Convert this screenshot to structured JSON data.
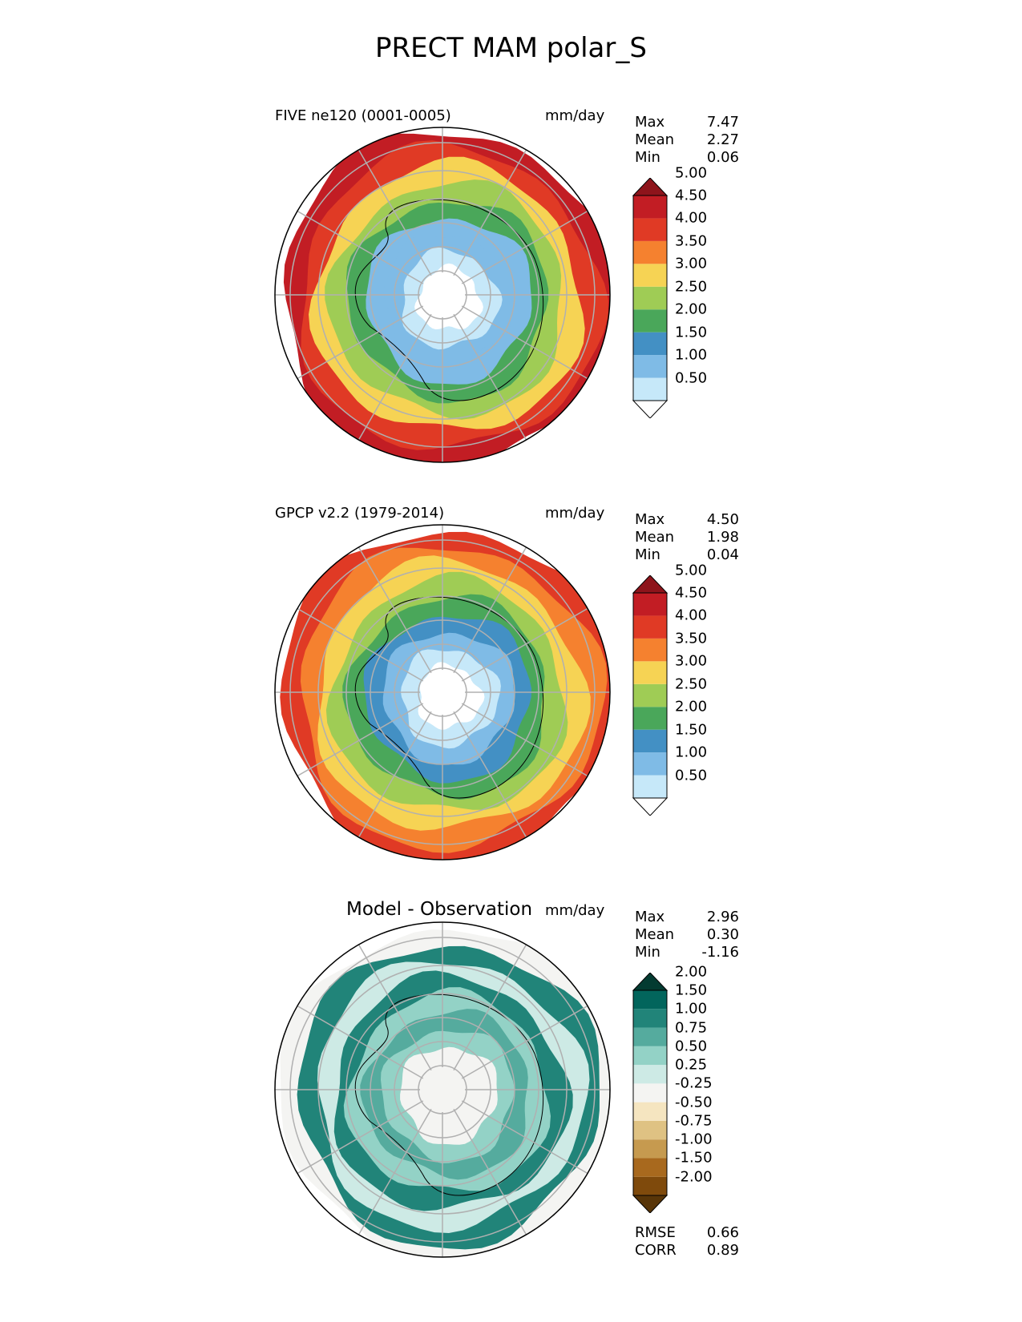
{
  "figure": {
    "title": "PRECT MAM polar_S",
    "units": "mm/day"
  },
  "chart_data": [
    {
      "type": "heatmap",
      "projection": "south polar stereographic",
      "title": "FIVE ne120 (0001-0005)",
      "units": "mm/day",
      "stats": {
        "max_label": "Max",
        "max": "7.47",
        "mean_label": "Mean",
        "mean": "2.27",
        "min_label": "Min",
        "min": "0.06"
      },
      "colorbar": {
        "levels": [
          "0.50",
          "1.00",
          "1.50",
          "2.00",
          "2.50",
          "3.00",
          "3.50",
          "4.00",
          "4.50",
          "5.00"
        ],
        "colors": [
          "#ffffff",
          "#c6e8f9",
          "#7fbbe6",
          "#4390c4",
          "#4aa75a",
          "#9fcc55",
          "#f6d354",
          "#f5812f",
          "#e03a25",
          "#c21d24",
          "#8e141b"
        ],
        "extend": "both"
      },
      "rings_mm_day": [
        0.3,
        0.6,
        1.0,
        1.4,
        2.2,
        2.7,
        3.3,
        4.0,
        4.8
      ]
    },
    {
      "type": "heatmap",
      "projection": "south polar stereographic",
      "title": "GPCP v2.2 (1979-2014)",
      "units": "mm/day",
      "stats": {
        "max_label": "Max",
        "max": "4.50",
        "mean_label": "Mean",
        "mean": "1.98",
        "min_label": "Min",
        "min": "0.04"
      },
      "colorbar": {
        "levels": [
          "0.50",
          "1.00",
          "1.50",
          "2.00",
          "2.50",
          "3.00",
          "3.50",
          "4.00",
          "4.50",
          "5.00"
        ],
        "colors": [
          "#ffffff",
          "#c6e8f9",
          "#7fbbe6",
          "#4390c4",
          "#4aa75a",
          "#9fcc55",
          "#f6d354",
          "#f5812f",
          "#e03a25",
          "#c21d24",
          "#8e141b"
        ],
        "extend": "both"
      },
      "rings_mm_day": [
        0.3,
        0.7,
        1.1,
        1.6,
        2.2,
        2.7,
        3.2,
        3.8,
        4.2
      ]
    },
    {
      "type": "heatmap",
      "projection": "south polar stereographic",
      "title": "Model - Observation",
      "units": "mm/day",
      "stats": {
        "max_label": "Max",
        "max": "2.96",
        "mean_label": "Mean",
        "mean": "0.30",
        "min_label": "Min",
        "min": "-1.16"
      },
      "colorbar": {
        "levels": [
          "-2.00",
          "-1.50",
          "-1.00",
          "-0.75",
          "-0.50",
          "-0.25",
          "0.25",
          "0.50",
          "0.75",
          "1.00",
          "1.50",
          "2.00"
        ],
        "colors": [
          "#583508",
          "#7f4a0c",
          "#a8691e",
          "#c69a4f",
          "#dfc283",
          "#f5e5c0",
          "#f4f4f2",
          "#cdeae5",
          "#93d2c6",
          "#55ab9e",
          "#218479",
          "#02655c",
          "#033b31"
        ],
        "extend": "both"
      },
      "rings_mm_day": [
        0.0,
        0.2,
        0.5,
        0.9,
        0.6,
        1.2,
        0.4,
        1.0,
        0.0
      ],
      "metrics": {
        "rmse_label": "RMSE",
        "rmse": "0.66",
        "corr_label": "CORR",
        "corr": "0.89"
      }
    }
  ]
}
